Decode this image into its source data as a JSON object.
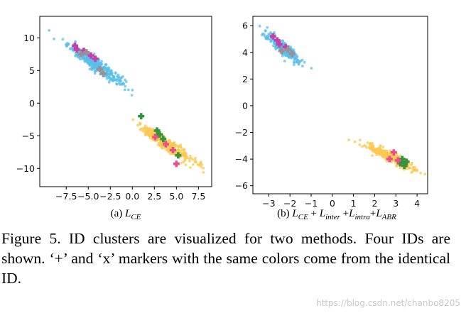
{
  "chart_data": [
    {
      "type": "scatter",
      "xlim": [
        -10.5,
        9.0
      ],
      "ylim": [
        -12.8,
        13.3
      ],
      "xticks": [
        -7.5,
        -5.0,
        -2.5,
        0.0,
        2.5,
        5.0,
        7.5
      ],
      "xtick_labels": [
        "−7.5",
        "−5.0",
        "−2.5",
        "0.0",
        "2.5",
        "5.0",
        "7.5"
      ],
      "yticks": [
        10,
        5,
        0,
        -5,
        -10
      ],
      "ytick_labels": [
        "10",
        "5",
        "0",
        "−5",
        "−10"
      ],
      "grid": false,
      "caption": {
        "prefix": "(a) ",
        "math": "L",
        "sub": "CE"
      },
      "clusters": [
        {
          "color": "#5bbfe8",
          "center": [
            -4.2,
            6.0
          ],
          "spread_along": 2.1,
          "spread_across": 0.35,
          "direction": [
            1,
            -0.95
          ],
          "count": 380
        },
        {
          "color": "#fbc850",
          "center": [
            3.8,
            -6.2
          ],
          "spread_along": 2.1,
          "spread_across": 0.35,
          "direction": [
            1,
            -0.95
          ],
          "count": 380
        }
      ],
      "markers": [
        {
          "symbol": "+",
          "color": "#c63faa",
          "points": [
            [
              -6.5,
              8.8
            ],
            [
              -6.3,
              8.2
            ],
            [
              -5.5,
              8.0
            ],
            [
              -4.2,
              6.8
            ],
            [
              -4.7,
              7.3
            ]
          ]
        },
        {
          "symbol": "+",
          "color": "#9a8f95",
          "points": [
            [
              -5.8,
              7.5
            ],
            [
              -5.2,
              7.8
            ],
            [
              -3.3,
              4.5
            ],
            [
              -3.7,
              5.2
            ]
          ]
        },
        {
          "symbol": "+",
          "color": "#35923d",
          "points": [
            [
              1.0,
              -2.0
            ],
            [
              2.8,
              -4.2
            ],
            [
              3.1,
              -4.8
            ],
            [
              3.5,
              -5.5
            ],
            [
              5.2,
              -8.0
            ]
          ]
        },
        {
          "symbol": "+",
          "color": "#e8508c",
          "points": [
            [
              2.6,
              -5.2
            ],
            [
              3.8,
              -6.3
            ],
            [
              4.6,
              -7.2
            ],
            [
              5.0,
              -9.3
            ]
          ]
        }
      ]
    },
    {
      "type": "scatter",
      "xlim": [
        -3.75,
        4.5
      ],
      "ylim": [
        -6.6,
        6.7
      ],
      "xticks": [
        -3,
        -2,
        -1,
        0,
        1,
        2,
        3,
        4
      ],
      "xtick_labels": [
        "−3",
        "−2",
        "−1",
        "0",
        "1",
        "2",
        "3",
        "4"
      ],
      "yticks": [
        6,
        4,
        2,
        0,
        -2,
        -4,
        -6
      ],
      "ytick_labels": [
        "6",
        "4",
        "2",
        "0",
        "−2",
        "−4",
        "−6"
      ],
      "grid": false,
      "caption": {
        "prefix": "(b) ",
        "parts": [
          {
            "math": "L",
            "sub": "CE"
          },
          {
            "op": " + "
          },
          {
            "math": "L",
            "sub": "inter"
          },
          {
            "op": " +"
          },
          {
            "math": "L",
            "sub": "intra"
          },
          {
            "op": "+"
          },
          {
            "math": "L",
            "sub": "ABR"
          }
        ]
      },
      "clusters": [
        {
          "color": "#5bbfe8",
          "center": [
            -2.3,
            4.3
          ],
          "spread_along": 0.65,
          "spread_across": 0.14,
          "direction": [
            1,
            -1.45
          ],
          "count": 330
        },
        {
          "color": "#fbc850",
          "center": [
            2.7,
            -3.8
          ],
          "spread_along": 0.75,
          "spread_across": 0.14,
          "direction": [
            1,
            -0.85
          ],
          "count": 330
        }
      ],
      "markers": [
        {
          "symbol": "+",
          "color": "#c63faa",
          "points": [
            [
              -2.6,
              4.9
            ],
            [
              -2.5,
              4.6
            ],
            [
              -2.2,
              4.4
            ],
            [
              -2.8,
              5.2
            ]
          ]
        },
        {
          "symbol": "+",
          "color": "#9a8f95",
          "points": [
            [
              -2.1,
              4.2
            ],
            [
              -1.9,
              3.9
            ],
            [
              -2.4,
              4.1
            ]
          ]
        },
        {
          "symbol": "+",
          "color": "#35923d",
          "points": [
            [
              3.2,
              -4.3
            ],
            [
              3.3,
              -4.0
            ],
            [
              3.4,
              -4.5
            ],
            [
              3.5,
              -4.2
            ]
          ]
        },
        {
          "symbol": "+",
          "color": "#e8508c",
          "points": [
            [
              2.7,
              -4.0
            ],
            [
              2.9,
              -3.5
            ],
            [
              3.1,
              -4.1
            ]
          ]
        }
      ]
    }
  ],
  "figure_caption": "Figure 5. ID clusters are visualized for two methods. Four IDs are shown. ‘+’ and ‘x’ markers with the same colors come from the identical ID.",
  "watermark": "https://blog.csdn.net/chanbo8205"
}
